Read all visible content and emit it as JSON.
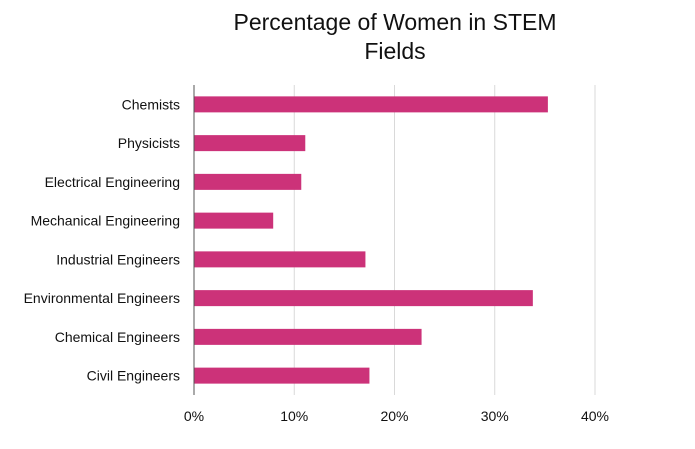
{
  "chart_data": {
    "type": "bar",
    "orientation": "horizontal",
    "title_lines": [
      "Percentage of Women in STEM",
      "Fields"
    ],
    "categories": [
      "Chemists",
      "Physicists",
      "Electrical Engineering",
      "Mechanical Engineering",
      "Industrial Engineers",
      "Environmental Engineers",
      "Chemical Engineers",
      "Civil Engineers"
    ],
    "values": [
      35.3,
      11.1,
      10.7,
      7.9,
      17.1,
      33.8,
      22.7,
      17.5
    ],
    "xlim": [
      0,
      40
    ],
    "xticks": [
      0,
      10,
      20,
      30,
      40
    ],
    "xtick_labels": [
      "0%",
      "10%",
      "20%",
      "30%",
      "40%"
    ],
    "grid": "vertical",
    "bar_color": "#cc3279",
    "grid_color": "#d9d9d9",
    "axis_color": "#555555"
  }
}
